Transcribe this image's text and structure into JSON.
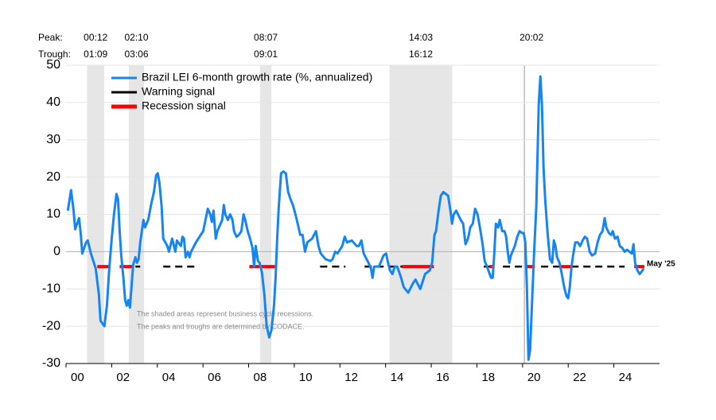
{
  "chart_data": {
    "type": "line",
    "series": [
      {
        "name": "Brazil LEI 6-month growth rate (%, annualized)",
        "color": "#1485f2",
        "x": [
          2000.08,
          2000.22,
          2000.33,
          2000.4,
          2000.57,
          2000.64,
          2000.71,
          2000.88,
          2000.95,
          2001.09,
          2001.3,
          2001.44,
          2001.51,
          2001.68,
          2001.79,
          2001.89,
          2002.0,
          2002.1,
          2002.21,
          2002.28,
          2002.35,
          2002.42,
          2002.52,
          2002.59,
          2002.66,
          2002.73,
          2002.8,
          2002.87,
          2002.94,
          2003.04,
          2003.11,
          2003.18,
          2003.25,
          2003.32,
          2003.39,
          2003.46,
          2003.6,
          2003.74,
          2003.85,
          2003.95,
          2004.02,
          2004.09,
          2004.19,
          2004.26,
          2004.44,
          2004.51,
          2004.65,
          2004.79,
          2004.86,
          2005.03,
          2005.1,
          2005.17,
          2005.24,
          2005.34,
          2005.41,
          2005.48,
          2005.69,
          2005.9,
          2006.01,
          2006.11,
          2006.21,
          2006.32,
          2006.39,
          2006.46,
          2006.56,
          2006.63,
          2006.84,
          2006.91,
          2006.98,
          2007.09,
          2007.19,
          2007.29,
          2007.36,
          2007.47,
          2007.57,
          2007.68,
          2007.78,
          2007.85,
          2007.96,
          2008.06,
          2008.17,
          2008.24,
          2008.31,
          2008.41,
          2008.48,
          2008.58,
          2008.69,
          2008.79,
          2008.9,
          2009.0,
          2009.11,
          2009.18,
          2009.25,
          2009.32,
          2009.42,
          2009.52,
          2009.63,
          2009.73,
          2009.84,
          2009.94,
          2010.05,
          2010.15,
          2010.26,
          2010.36,
          2010.47,
          2010.57,
          2010.78,
          2010.95,
          2011.06,
          2011.16,
          2011.37,
          2011.58,
          2011.68,
          2011.79,
          2011.89,
          2012.1,
          2012.21,
          2012.31,
          2012.52,
          2012.73,
          2012.83,
          2012.94,
          2013.04,
          2013.25,
          2013.36,
          2013.43,
          2013.5,
          2013.71,
          2013.91,
          2014.02,
          2014.09,
          2014.19,
          2014.3,
          2014.4,
          2014.51,
          2014.68,
          2014.79,
          2014.99,
          2015.2,
          2015.31,
          2015.52,
          2015.73,
          2015.94,
          2016.04,
          2016.14,
          2016.21,
          2016.32,
          2016.42,
          2016.53,
          2016.74,
          2016.84,
          2016.91,
          2016.98,
          2017.09,
          2017.29,
          2017.4,
          2017.5,
          2017.61,
          2017.71,
          2017.82,
          2017.92,
          2018.03,
          2018.13,
          2018.24,
          2018.34,
          2018.44,
          2018.62,
          2018.69,
          2018.76,
          2018.83,
          2018.93,
          2019.0,
          2019.11,
          2019.21,
          2019.28,
          2019.35,
          2019.42,
          2019.49,
          2019.66,
          2019.77,
          2019.87,
          2019.98,
          2020.05,
          2020.12,
          2020.19,
          2020.26,
          2020.33,
          2020.4,
          2020.5,
          2020.6,
          2020.71,
          2020.78,
          2020.85,
          2020.92,
          2020.99,
          2021.09,
          2021.2,
          2021.3,
          2021.37,
          2021.44,
          2021.51,
          2021.62,
          2021.72,
          2021.82,
          2021.93,
          2022.0,
          2022.07,
          2022.14,
          2022.21,
          2022.31,
          2022.42,
          2022.52,
          2022.63,
          2022.73,
          2022.83,
          2022.94,
          2023.04,
          2023.18,
          2023.29,
          2023.39,
          2023.5,
          2023.6,
          2023.67,
          2023.78,
          2023.88,
          2023.95,
          2024.05,
          2024.16,
          2024.26,
          2024.37,
          2024.47,
          2024.58,
          2024.68,
          2024.79,
          2024.86,
          2024.93,
          2025.03,
          2025.13,
          2025.2,
          2025.31
        ],
        "values": [
          11,
          16.5,
          11,
          6,
          9,
          5,
          -0.5,
          2.5,
          3,
          -0.5,
          -4.5,
          -11.5,
          -18.5,
          -20,
          -14.5,
          -5,
          3.5,
          10,
          15.5,
          14,
          5.5,
          -1,
          -7.5,
          -13,
          -14.5,
          -13,
          -15,
          -9.5,
          -3.5,
          -1.5,
          -3,
          -2,
          2.5,
          5.5,
          8.5,
          6.5,
          8.5,
          13,
          16,
          20.5,
          21,
          18.5,
          12,
          3.5,
          1.5,
          0,
          3.5,
          0,
          3,
          1.5,
          4,
          3.5,
          -1.5,
          0,
          -1.5,
          0,
          2.5,
          4.5,
          5.5,
          8.5,
          11.5,
          10,
          8,
          11,
          3.5,
          5.5,
          8.5,
          12.5,
          10,
          8.5,
          10,
          8.5,
          5.5,
          4,
          4.5,
          5.5,
          10,
          8.5,
          5.5,
          3.5,
          1,
          -4,
          1.5,
          -2.5,
          -3,
          -5.5,
          -11.5,
          -20,
          -23,
          -21,
          -14.5,
          -7,
          3.5,
          12,
          21,
          21.5,
          21,
          16,
          14,
          12.5,
          10,
          7.5,
          4.5,
          4.5,
          0,
          2.5,
          3.5,
          5.5,
          1.5,
          -0.5,
          -2,
          -2.5,
          -2,
          0,
          -0.5,
          1.5,
          4,
          2.5,
          3,
          1.5,
          1.5,
          3,
          -0.5,
          -3,
          -4.5,
          -7,
          -4,
          -4,
          -1,
          -0.5,
          -2.5,
          -5,
          -6,
          -4,
          -4,
          -7,
          -9.5,
          -11,
          -8.5,
          -7.5,
          -10,
          -6,
          -5,
          -3,
          4.5,
          5.5,
          11,
          15,
          16,
          15,
          11,
          7.5,
          10,
          11,
          8.5,
          7.5,
          2,
          3.5,
          6.5,
          7.5,
          11.5,
          10,
          6.5,
          2.5,
          -2.5,
          -4,
          -7,
          -7,
          -0.5,
          7.5,
          6.5,
          8.5,
          5.5,
          5.5,
          4,
          0,
          -3,
          -1,
          1.5,
          4,
          5.5,
          5,
          5,
          2.5,
          -9.5,
          -29,
          -26.5,
          -16,
          -1,
          12,
          39.5,
          47,
          39.5,
          22.5,
          14,
          5.5,
          -2,
          -3,
          3,
          1.5,
          -1.5,
          -3,
          -6,
          -9.5,
          -12,
          -12.5,
          -9.5,
          -4.5,
          -1,
          2.5,
          2.5,
          1.5,
          3,
          4,
          3.5,
          0,
          -1,
          -0.5,
          2.5,
          4.5,
          5.5,
          9,
          6.5,
          5,
          4.5,
          5.5,
          3.5,
          4,
          1.5,
          1,
          0,
          0.5,
          0,
          -0.5,
          2,
          -3,
          -5,
          -6,
          -5.5,
          -4.5
        ]
      }
    ],
    "signal_level": -4,
    "signals": [
      {
        "name": "Warning signal",
        "color": "#000000",
        "segments": [
          [
            2003.04,
            2003.25
          ],
          [
            2004.26,
            2005.76
          ],
          [
            2011.13,
            2012.24
          ],
          [
            2013.08,
            2014.89
          ],
          [
            2018.3,
            2018.65
          ],
          [
            2019.14,
            2020.12
          ],
          [
            2020.81,
            2021.68
          ],
          [
            2022.14,
            2024.47
          ]
        ]
      },
      {
        "name": "Recession signal",
        "color": "#ff0000",
        "segments": [
          [
            2001.37,
            2001.93
          ],
          [
            2002.35,
            2002.97
          ],
          [
            2008.03,
            2009.21
          ],
          [
            2014.72,
            2016.11
          ],
          [
            2018.55,
            2018.72
          ],
          [
            2020.12,
            2020.54
          ],
          [
            2021.68,
            2022.14
          ],
          [
            2024.89,
            2025.34
          ]
        ]
      }
    ],
    "peak_label": "Peak:",
    "trough_label": "Trough:",
    "recessions": [
      {
        "peak": "00:12",
        "trough": "01:09",
        "start": 2000.92,
        "end": 2001.67
      },
      {
        "peak": "02:10",
        "trough": "03:06",
        "start": 2002.75,
        "end": 2003.42
      },
      {
        "peak": "08:07",
        "trough": "09:01",
        "start": 2008.5,
        "end": 2009.0
      },
      {
        "peak": "14:03",
        "trough": "16:12",
        "start": 2014.17,
        "end": 2016.92
      },
      {
        "peak": "20:02",
        "start": 2020.08
      }
    ],
    "notes": [
      "The shaded areas represent business cycle recessions.",
      "The peaks and troughs are determined by CODACE."
    ],
    "end_label": "May '25",
    "xlim": [
      2000,
      2026
    ],
    "xticks": [
      {
        "value": 2000.5,
        "label": "00"
      },
      {
        "value": 2002.5,
        "label": "02"
      },
      {
        "value": 2004.5,
        "label": "04"
      },
      {
        "value": 2006.5,
        "label": "06"
      },
      {
        "value": 2008.5,
        "label": "08"
      },
      {
        "value": 2010.5,
        "label": "10"
      },
      {
        "value": 2012.5,
        "label": "12"
      },
      {
        "value": 2014.5,
        "label": "14"
      },
      {
        "value": 2016.5,
        "label": "16"
      },
      {
        "value": 2018.5,
        "label": "18"
      },
      {
        "value": 2020.5,
        "label": "20"
      },
      {
        "value": 2022.5,
        "label": "22"
      },
      {
        "value": 2024.5,
        "label": "24"
      }
    ],
    "ylim": [
      -30,
      50
    ],
    "yticks": [
      -30,
      -20,
      -10,
      0,
      10,
      20,
      30,
      40,
      50
    ],
    "grid": true
  }
}
